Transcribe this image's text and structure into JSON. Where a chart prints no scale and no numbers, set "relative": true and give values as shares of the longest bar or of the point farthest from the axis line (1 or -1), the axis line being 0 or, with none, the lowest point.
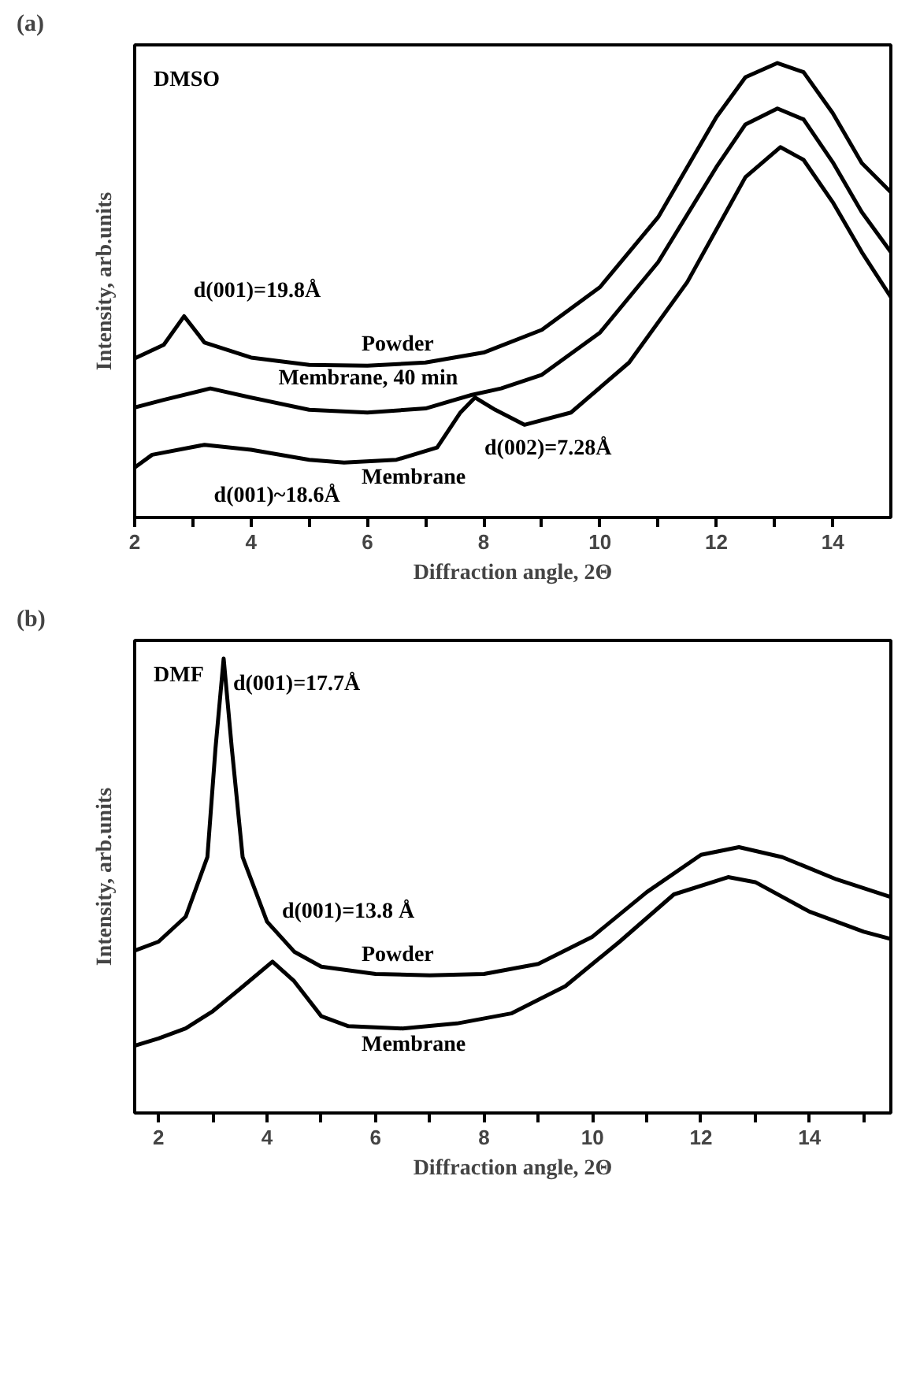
{
  "chart_data": [
    {
      "type": "line",
      "title": "(a)",
      "xlabel": "Diffraction angle, 2Θ",
      "ylabel": "Intensity, arb.units",
      "relative": true,
      "xlim": [
        2,
        15
      ],
      "xticks": [
        2,
        {
          "value": 3,
          "label": null
        },
        4,
        {
          "value": 5,
          "label": null
        },
        6,
        {
          "value": 7,
          "label": null
        },
        8,
        {
          "value": 9,
          "label": null
        },
        10,
        {
          "value": 11,
          "label": null
        },
        12,
        {
          "value": 13,
          "label": null
        },
        14
      ],
      "series": [
        {
          "name": "Powder",
          "color": "#000000",
          "x": [
            2,
            2.5,
            2.85,
            3.2,
            4,
            5,
            6,
            7,
            8,
            9,
            10,
            11,
            12,
            12.5,
            13.05,
            13.5,
            14,
            14.5,
            15
          ],
          "values": [
            0.35,
            0.38,
            0.443,
            0.385,
            0.352,
            0.336,
            0.334,
            0.341,
            0.363,
            0.413,
            0.507,
            0.661,
            0.881,
            0.969,
            1.0,
            0.98,
            0.89,
            0.78,
            0.716
          ]
        },
        {
          "name": "Membrane, 40 min",
          "color": "#000000",
          "x": [
            2,
            2.5,
            3.3,
            4,
            5,
            6,
            7,
            7.8,
            8.3,
            9,
            10,
            11,
            12,
            12.5,
            13.05,
            13.5,
            14,
            14.5,
            15
          ],
          "values": [
            0.242,
            0.259,
            0.284,
            0.264,
            0.237,
            0.231,
            0.24,
            0.27,
            0.284,
            0.314,
            0.407,
            0.562,
            0.771,
            0.865,
            0.9,
            0.876,
            0.782,
            0.672,
            0.584
          ]
        },
        {
          "name": "Membrane",
          "color": "#000000",
          "x": [
            2,
            2.3,
            3.2,
            4,
            5,
            5.6,
            6.5,
            7.2,
            7.6,
            7.85,
            8.2,
            8.7,
            9.5,
            10.5,
            11.5,
            12.5,
            13.1,
            13.5,
            14,
            14.5,
            15
          ],
          "values": [
            0.11,
            0.138,
            0.16,
            0.149,
            0.127,
            0.121,
            0.127,
            0.154,
            0.231,
            0.264,
            0.237,
            0.204,
            0.231,
            0.341,
            0.518,
            0.749,
            0.815,
            0.787,
            0.694,
            0.584,
            0.485
          ]
        }
      ],
      "annotations": [
        "DMSO",
        {
          "text": "d(001)=19.8Å",
          "x": 2.85,
          "y": 0.443
        },
        {
          "text": "d(001)~18.6Å",
          "x": 3.2,
          "y": 0.16
        },
        {
          "text": "d(002)=7.28Å",
          "x": 7.85,
          "y": 0.264
        }
      ]
    },
    {
      "type": "line",
      "title": "(b)",
      "xlabel": "Diffraction angle, 2Θ",
      "ylabel": "Intensity, arb.units",
      "relative": true,
      "xlim": [
        1.56,
        15.5
      ],
      "xticks": [
        2,
        {
          "value": 3,
          "label": null
        },
        4,
        {
          "value": 5,
          "label": null
        },
        6,
        {
          "value": 7,
          "label": null
        },
        8,
        {
          "value": 9,
          "label": null
        },
        10,
        {
          "value": 11,
          "label": null
        },
        12,
        {
          "value": 13,
          "label": null
        },
        14,
        {
          "value": 15,
          "label": null
        }
      ],
      "series": [
        {
          "name": "Powder",
          "color": "#000000",
          "x": [
            1.56,
            2,
            2.5,
            2.9,
            3.05,
            3.2,
            3.35,
            3.55,
            4,
            4.5,
            5,
            6,
            7,
            8,
            9,
            10,
            11,
            12,
            12.7,
            13.5,
            14.5,
            15.5
          ],
          "values": [
            0.357,
            0.377,
            0.432,
            0.563,
            0.803,
            1.0,
            0.803,
            0.563,
            0.421,
            0.355,
            0.322,
            0.306,
            0.303,
            0.306,
            0.328,
            0.388,
            0.486,
            0.568,
            0.585,
            0.563,
            0.514,
            0.475
          ]
        },
        {
          "name": "Membrane",
          "color": "#000000",
          "x": [
            1.56,
            2,
            2.5,
            3,
            3.5,
            4.1,
            4.5,
            5,
            5.5,
            6.5,
            7.5,
            8.5,
            9.5,
            10.5,
            11.5,
            12.5,
            13,
            14,
            15,
            15.5
          ],
          "values": [
            0.148,
            0.164,
            0.186,
            0.224,
            0.273,
            0.333,
            0.29,
            0.213,
            0.191,
            0.186,
            0.197,
            0.219,
            0.279,
            0.377,
            0.481,
            0.519,
            0.508,
            0.443,
            0.399,
            0.383
          ]
        }
      ],
      "annotations": [
        "DMF",
        {
          "text": "d(001)=17.7Å",
          "x": 3.2,
          "y": 1.0
        },
        {
          "text": "d(001)=13.8 Å",
          "x": 4.1,
          "y": 0.333
        }
      ]
    }
  ]
}
